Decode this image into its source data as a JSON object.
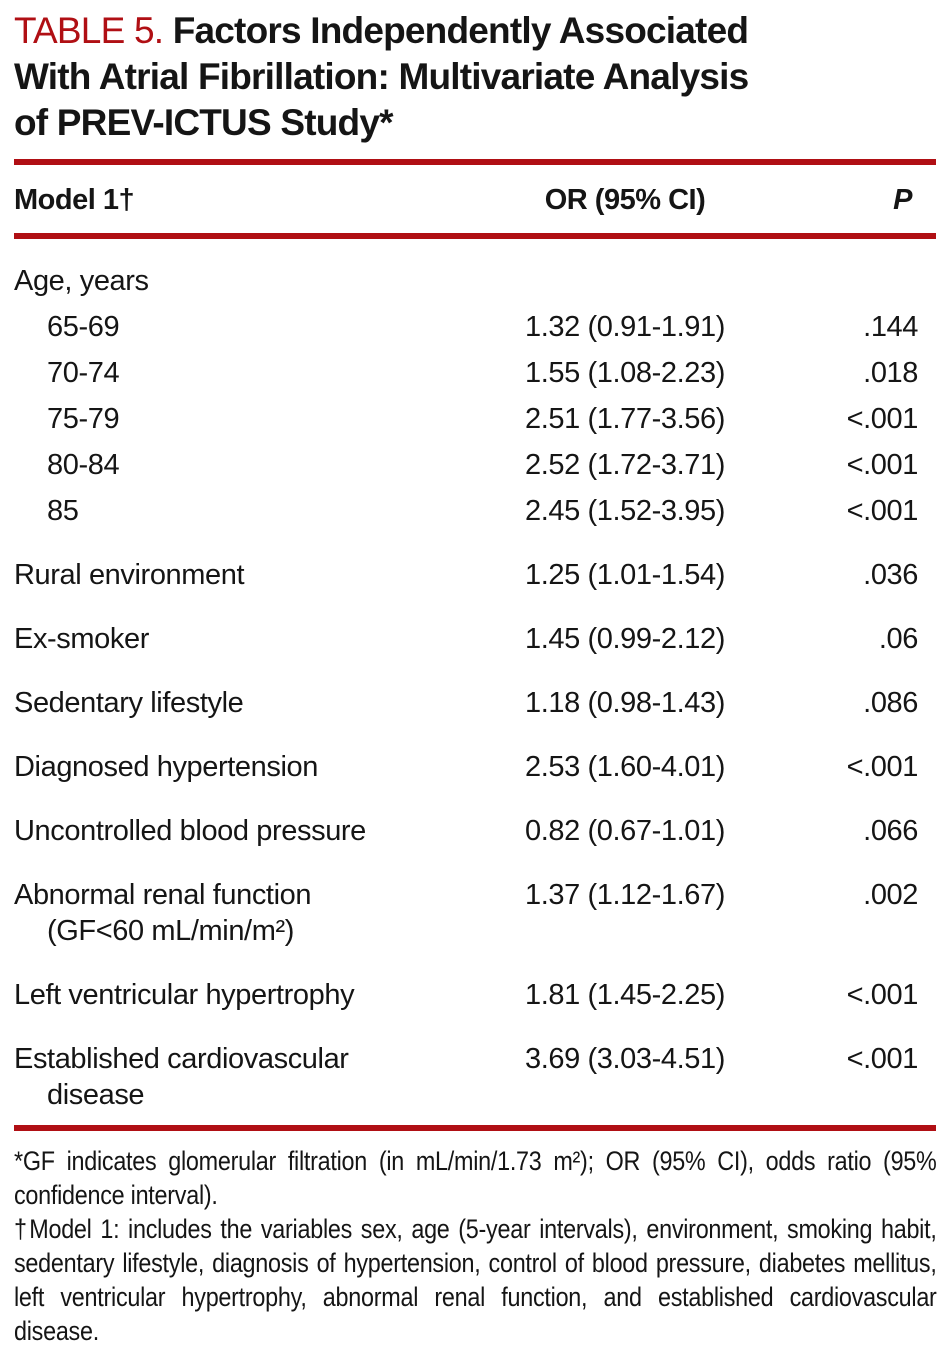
{
  "colors": {
    "accent_red": "#b00f14",
    "text": "#151515"
  },
  "header": {
    "label": "TABLE 5.",
    "title_lines": [
      "Factors Independently Associated",
      "With Atrial Fibrillation: Multivariate Analysis",
      "of PREV-ICTUS Study*"
    ]
  },
  "table": {
    "columns": [
      "Model 1†",
      "OR (95% CI)",
      "P"
    ],
    "rows": [
      {
        "label": "Age, years",
        "group": true,
        "or": "",
        "p": ""
      },
      {
        "label": "65-69",
        "indent": true,
        "or": "1.32 (0.91-1.91)",
        "p": ".144"
      },
      {
        "label": "70-74",
        "indent": true,
        "or": "1.55 (1.08-2.23)",
        "p": ".018"
      },
      {
        "label": "75-79",
        "indent": true,
        "or": "2.51 (1.77-3.56)",
        "p": "<.001"
      },
      {
        "label": "80-84",
        "indent": true,
        "or": "2.52 (1.72-3.71)",
        "p": "<.001"
      },
      {
        "label": "85",
        "indent": true,
        "or": "2.45 (1.52-3.95)",
        "p": "<.001"
      },
      {
        "label": "Rural environment",
        "or": "1.25 (1.01-1.54)",
        "p": ".036"
      },
      {
        "label": "Ex-smoker",
        "or": "1.45 (0.99-2.12)",
        "p": ".06"
      },
      {
        "label": "Sedentary lifestyle",
        "or": "1.18 (0.98-1.43)",
        "p": ".086"
      },
      {
        "label": "Diagnosed hypertension",
        "or": "2.53 (1.60-4.01)",
        "p": "<.001"
      },
      {
        "label": "Uncontrolled blood pressure",
        "or": "0.82 (0.67-1.01)",
        "p": ".066"
      },
      {
        "label": "Abnormal renal function",
        "label2": "(GF<60 mL/min/m²)",
        "or": "1.37 (1.12-1.67)",
        "p": ".002"
      },
      {
        "label": "Left ventricular hypertrophy",
        "or": "1.81 (1.45-2.25)",
        "p": "<.001"
      },
      {
        "label": "Established cardiovascular",
        "label2": "disease",
        "or": "3.69 (3.03-4.51)",
        "p": "<.001"
      }
    ]
  },
  "footnotes": [
    "*GF indicates glomerular filtration (in mL/min/1.73 m²); OR (95% CI), odds ratio (95% confidence interval).",
    "†Model 1: includes the variables sex, age (5-year intervals), environment, smoking habit, sedentary lifestyle, diagnosis of hypertension, control of blood pressure, diabetes mellitus, left ventricular hypertrophy, abnormal renal function, and established cardiovascular disease."
  ]
}
